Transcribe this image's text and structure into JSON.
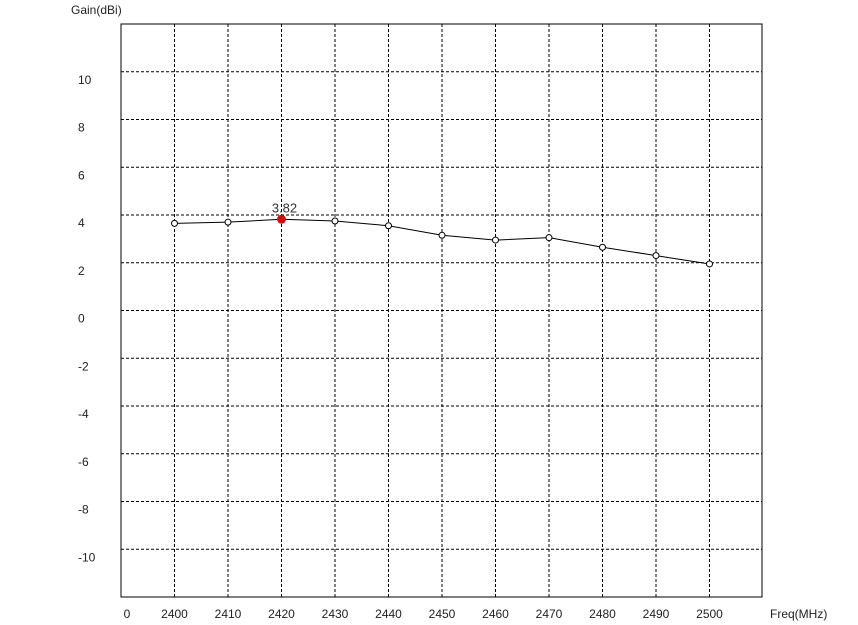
{
  "chart_data": {
    "type": "line",
    "ylabel": "Gain(dBi)",
    "xlabel": "Freq(MHz)",
    "x_tick_labels": [
      "0",
      "2400",
      "2410",
      "2420",
      "2430",
      "2440",
      "2450",
      "2460",
      "2470",
      "2480",
      "2490",
      "2500"
    ],
    "y_tick_labels": [
      "10",
      "8",
      "6",
      "4",
      "2",
      "0",
      "-2",
      "-4",
      "-6",
      "-8",
      "-10"
    ],
    "y_ticks": [
      10,
      8,
      6,
      4,
      2,
      0,
      -2,
      -4,
      -6,
      -8,
      -10
    ],
    "ylim": [
      -12,
      12
    ],
    "grid": true,
    "series": [
      {
        "x": [
          2400,
          2410,
          2420,
          2430,
          2440,
          2450,
          2460,
          2470,
          2480,
          2490,
          2500
        ],
        "y": [
          3.65,
          3.7,
          3.82,
          3.75,
          3.55,
          3.15,
          2.95,
          3.05,
          2.65,
          2.3,
          1.95
        ],
        "color": "#000000"
      }
    ],
    "peak": {
      "x": 2420,
      "y": 3.82,
      "label": "3.82",
      "color": "#cc1111"
    }
  }
}
